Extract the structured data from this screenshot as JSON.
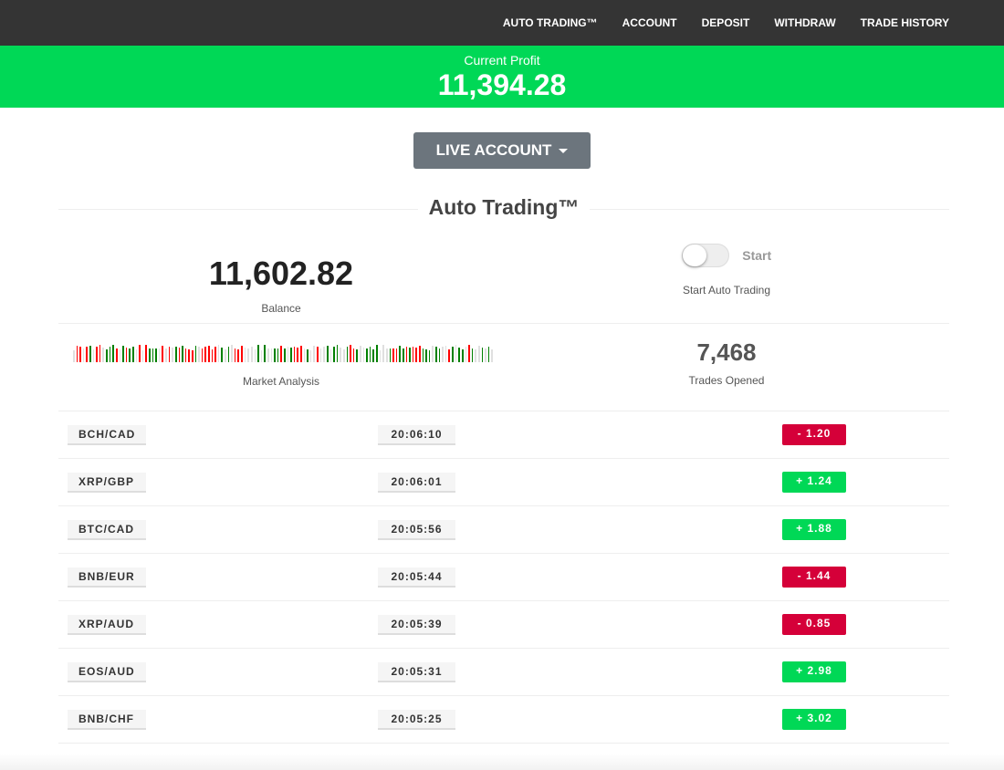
{
  "nav": {
    "items": [
      "AUTO TRADING™",
      "ACCOUNT",
      "DEPOSIT",
      "WITHDRAW",
      "TRADE HISTORY"
    ]
  },
  "banner": {
    "label": "Current Profit",
    "value": "11,394.28"
  },
  "account_button": {
    "label": "LIVE ACCOUNT"
  },
  "section_title": "Auto Trading™",
  "balance": {
    "value": "11,602.82",
    "label": "Balance"
  },
  "auto_trading": {
    "toggle_label": "Start",
    "toggle_on": false,
    "label": "Start Auto Trading"
  },
  "market_analysis": {
    "label": "Market Analysis",
    "bars": "nrrnrgnrrngggrngrggnrnrgggnrnrngrgrrrgnrrrrrngngnrrrnnnngngnnggrgngrrrngnnrnngnggnngrrgnnggggnnngrrggrgrrrgggnggnnrgnggnrgnngngn"
  },
  "trades_opened": {
    "value": "7,468",
    "label": "Trades Opened"
  },
  "colors": {
    "profit": "#00d856",
    "loss": "#d50039",
    "nav": "#343434",
    "bar_up": "#008000",
    "bar_down": "#ff0000",
    "bar_neutral": "#e0e0e0"
  },
  "trades": [
    {
      "pair": "BCH/CAD",
      "time": "20:06:10",
      "pl": "-  1.20",
      "dir": "loss"
    },
    {
      "pair": "XRP/GBP",
      "time": "20:06:01",
      "pl": "+  1.24",
      "dir": "profit"
    },
    {
      "pair": "BTC/CAD",
      "time": "20:05:56",
      "pl": "+  1.88",
      "dir": "profit"
    },
    {
      "pair": "BNB/EUR",
      "time": "20:05:44",
      "pl": "-  1.44",
      "dir": "loss"
    },
    {
      "pair": "XRP/AUD",
      "time": "20:05:39",
      "pl": "-  0.85",
      "dir": "loss"
    },
    {
      "pair": "EOS/AUD",
      "time": "20:05:31",
      "pl": "+  2.98",
      "dir": "profit"
    },
    {
      "pair": "BNB/CHF",
      "time": "20:05:25",
      "pl": "+  3.02",
      "dir": "profit"
    }
  ]
}
